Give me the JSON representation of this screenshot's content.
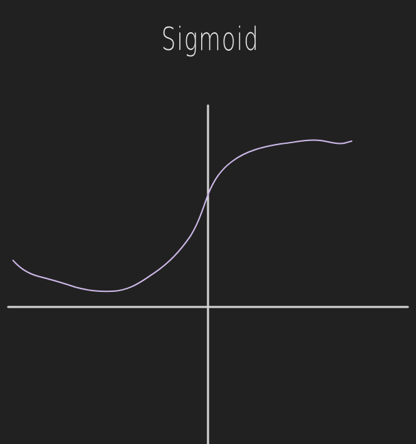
{
  "title": "Sigmoid",
  "colors": {
    "background": "#212121",
    "axis": "#d4d4d4",
    "curve": "#cdb9e8",
    "text": "#e8e8e8"
  }
}
